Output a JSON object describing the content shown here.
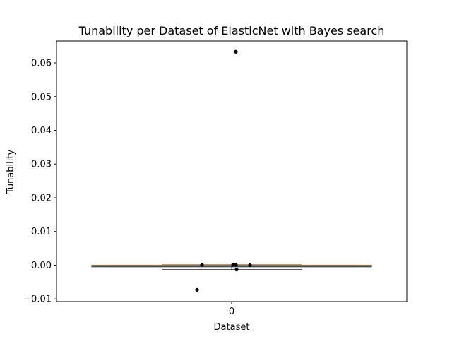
{
  "chart_data": {
    "type": "box",
    "title": "Tunability per Dataset of ElasticNet with Bayes search",
    "xlabel": "Dataset",
    "ylabel": "Tunability",
    "categories": [
      "0"
    ],
    "ylim": [
      -0.0108,
      0.0665
    ],
    "yticks": [
      -0.01,
      0.0,
      0.01,
      0.02,
      0.03,
      0.04,
      0.05,
      0.06
    ],
    "ytick_labels": [
      "−0.01",
      "0.00",
      "0.01",
      "0.02",
      "0.03",
      "0.04",
      "0.05",
      "0.06"
    ],
    "grid": false,
    "legend": "none",
    "box": {
      "q1": -0.0005,
      "median": -0.0001,
      "q3": 0.0,
      "whisker_low": -0.0013,
      "whisker_high": 0.0001
    },
    "points": [
      {
        "x": 0.0,
        "y": 0.0633
      },
      {
        "x": 0.0,
        "y": 0.0001
      },
      {
        "x": 0.0,
        "y": 0.0001
      },
      {
        "x": 0.0,
        "y": 0.0001
      },
      {
        "x": 0.0,
        "y": 0.0
      },
      {
        "x": 0.0,
        "y": -0.0013
      },
      {
        "x": 0.0,
        "y": -0.0073
      }
    ],
    "colors": {
      "box_fill": "#1f77b4",
      "box_edge": "#3f3f3f",
      "median": "#ff7f0e",
      "points": "#000000",
      "axes": "#000000"
    }
  }
}
